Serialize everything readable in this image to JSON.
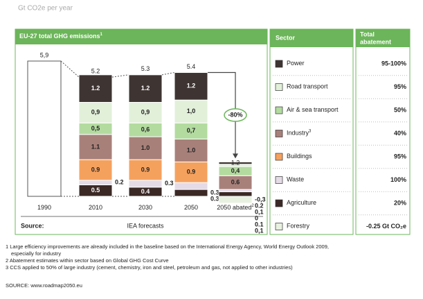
{
  "unit_label": "Gt CO2e per year",
  "chart_data": {
    "type": "bar",
    "stacked": true,
    "title": "EU-27 total GHG emissions",
    "title_note": "1",
    "categories": [
      "1990",
      "2010",
      "2030",
      "2050",
      "2050 abated"
    ],
    "category_notes": [
      null,
      null,
      null,
      null,
      "2"
    ],
    "totals": {
      "values": [
        5.9,
        5.2,
        5.3,
        5.4,
        1.2
      ],
      "value_labels": [
        "5,9",
        "5.2",
        "5.3",
        "5.4",
        "1.2"
      ]
    },
    "series": [
      {
        "name": "Power",
        "color": "#3e3431",
        "values": [
          null,
          1.2,
          1.2,
          1.2,
          0.1
        ],
        "value_labels": [
          null,
          "1.2",
          "1.2",
          "1.2",
          "0,1"
        ]
      },
      {
        "name": "Road transport",
        "color": "#e2f0da",
        "values": [
          null,
          0.9,
          0.9,
          1.0,
          0.1
        ],
        "value_labels": [
          null,
          "0,9",
          "0,9",
          "1,0",
          "0.1"
        ]
      },
      {
        "name": "Air & sea transport",
        "color": "#b3dba0",
        "values": [
          null,
          0.5,
          0.6,
          0.7,
          0.4
        ],
        "value_labels": [
          null,
          "0,5",
          "0,6",
          "0,7",
          "0,4"
        ]
      },
      {
        "name": "Industry",
        "note": "3",
        "color": "#a8807a",
        "values": [
          null,
          1.1,
          1.0,
          1.0,
          0.6
        ],
        "value_labels": [
          null,
          "1.1",
          "1.0",
          "1.0",
          "0.6"
        ]
      },
      {
        "name": "Buildings",
        "color": "#f5a15e",
        "values": [
          null,
          0.9,
          0.9,
          0.9,
          0
        ],
        "value_labels": [
          null,
          "0.9",
          "0.9",
          "0.9",
          "0"
        ]
      },
      {
        "name": "Waste",
        "color": "#e4dbe7",
        "values": [
          null,
          0.2,
          0.3,
          0.3,
          0.1
        ],
        "value_labels": [
          null,
          "0.2",
          "0.3",
          "0.3",
          "0,1"
        ]
      },
      {
        "name": "Agriculture",
        "color": "#3b2926",
        "values": [
          null,
          0.5,
          0.4,
          0.3,
          0.2
        ],
        "value_labels": [
          null,
          "0.5",
          "0.4",
          "0.3",
          "0.2"
        ]
      },
      {
        "name": "Forestry",
        "color": "#e8f1e0",
        "values": [
          null,
          null,
          null,
          null,
          -0.3
        ],
        "value_labels": [
          null,
          null,
          null,
          null,
          "-0,3"
        ]
      }
    ],
    "annotation": "-80%",
    "source_label": "Source:",
    "source_text": "IEA forecasts"
  },
  "table": {
    "headers": [
      "Sector",
      [
        "Total",
        "abatement"
      ]
    ],
    "abatement": [
      "95-100%",
      "95%",
      "50%",
      "40%",
      "95%",
      "100%",
      "20%",
      "-0.25 Gt CO₂e"
    ]
  },
  "footnotes": [
    [
      "1 Large efficiency improvements are already included in the baseline based on the International Energy Agency, World Energy Outlook 2009,",
      "especially for industry"
    ],
    [
      "2 Abatement estimates within sector based on Global GHG Cost Curve"
    ],
    [
      "3 CCS applied to 50% of large industry (cement, chemistry, iron and steel, petroleum and gas, not applied to other industries)"
    ]
  ],
  "source": "SOURCE: www.roadmap2050.eu"
}
